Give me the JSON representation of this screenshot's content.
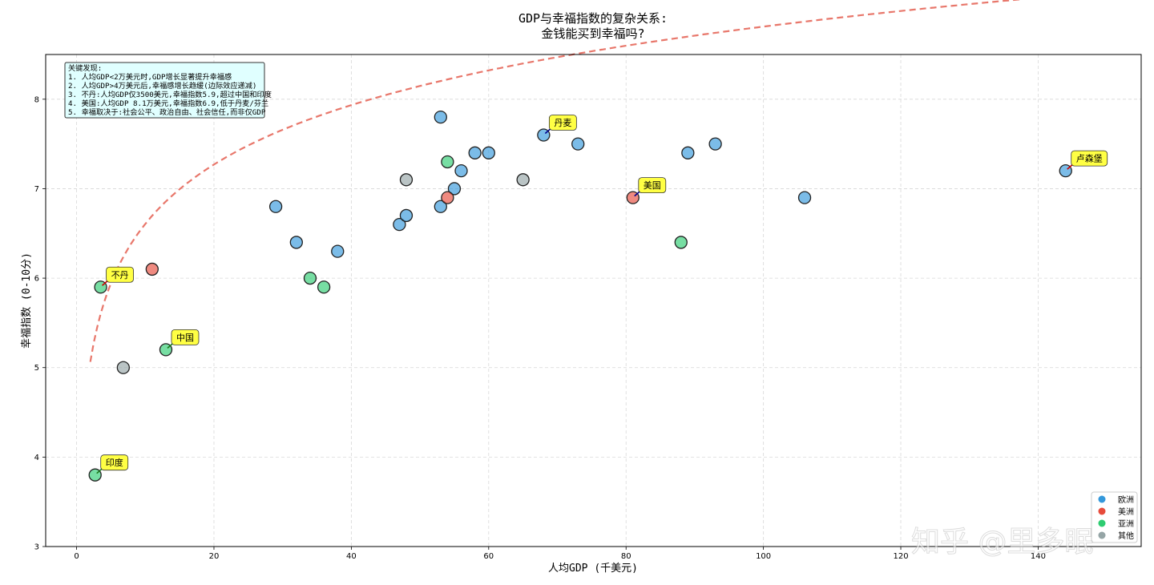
{
  "chart_data": {
    "type": "scatter",
    "title_line1": "GDP与幸福指数的复杂关系:",
    "title_line2": "金钱能买到幸福吗?",
    "xlabel": "人均GDP (千美元)",
    "ylabel": "幸福指数 (0-10分)",
    "xlim": [
      -4.5,
      155
    ],
    "ylim": [
      3,
      8.5
    ],
    "xticks": [
      0,
      20,
      40,
      60,
      80,
      100,
      120,
      140
    ],
    "yticks": [
      3,
      4,
      5,
      6,
      7,
      8
    ],
    "grid": true,
    "colors": {
      "欧洲": "#3498db",
      "美洲": "#e74c3c",
      "亚洲": "#2ecc71",
      "其他": "#95a5a6",
      "trend": "#e8776b",
      "annotation_bg": "#ffff44",
      "note_bg": "#e0ffff"
    },
    "points": [
      {
        "x": 29,
        "y": 6.8,
        "group": "欧洲"
      },
      {
        "x": 32,
        "y": 6.4,
        "group": "欧洲"
      },
      {
        "x": 38,
        "y": 6.3,
        "group": "欧洲"
      },
      {
        "x": 47,
        "y": 6.6,
        "group": "欧洲"
      },
      {
        "x": 48,
        "y": 6.7,
        "group": "欧洲"
      },
      {
        "x": 53,
        "y": 6.8,
        "group": "欧洲"
      },
      {
        "x": 55,
        "y": 7.0,
        "group": "欧洲"
      },
      {
        "x": 53,
        "y": 7.8,
        "group": "欧洲"
      },
      {
        "x": 56,
        "y": 7.2,
        "group": "欧洲"
      },
      {
        "x": 58,
        "y": 7.4,
        "group": "欧洲"
      },
      {
        "x": 60,
        "y": 7.4,
        "group": "欧洲"
      },
      {
        "x": 68,
        "y": 7.6,
        "group": "欧洲"
      },
      {
        "x": 73,
        "y": 7.5,
        "group": "欧洲"
      },
      {
        "x": 89,
        "y": 7.4,
        "group": "欧洲"
      },
      {
        "x": 93,
        "y": 7.5,
        "group": "欧洲"
      },
      {
        "x": 106,
        "y": 6.9,
        "group": "欧洲"
      },
      {
        "x": 144,
        "y": 7.2,
        "group": "欧洲"
      },
      {
        "x": 11,
        "y": 6.1,
        "group": "美洲"
      },
      {
        "x": 54,
        "y": 6.9,
        "group": "美洲"
      },
      {
        "x": 81,
        "y": 6.9,
        "group": "美洲"
      },
      {
        "x": 3.5,
        "y": 5.9,
        "group": "亚洲"
      },
      {
        "x": 13,
        "y": 5.2,
        "group": "亚洲"
      },
      {
        "x": 2.7,
        "y": 3.8,
        "group": "亚洲"
      },
      {
        "x": 34,
        "y": 6.0,
        "group": "亚洲"
      },
      {
        "x": 36,
        "y": 5.9,
        "group": "亚洲"
      },
      {
        "x": 54,
        "y": 7.3,
        "group": "亚洲"
      },
      {
        "x": 88,
        "y": 6.4,
        "group": "亚洲"
      },
      {
        "x": 6.8,
        "y": 5.0,
        "group": "其他"
      },
      {
        "x": 48,
        "y": 7.1,
        "group": "其他"
      },
      {
        "x": 65,
        "y": 7.1,
        "group": "其他"
      }
    ],
    "trend": {
      "type": "log",
      "a": 4.4,
      "b": 0.958,
      "x_start": 2,
      "x_end": 150
    },
    "annotations": [
      {
        "label": "不丹",
        "x": 3.5,
        "y": 5.9,
        "arrow": "#cc0000"
      },
      {
        "label": "中国",
        "x": 13,
        "y": 5.2,
        "arrow": "#1a7a1a"
      },
      {
        "label": "印度",
        "x": 2.7,
        "y": 3.8,
        "arrow": "#1a7a1a"
      },
      {
        "label": "丹麦",
        "x": 68,
        "y": 7.6,
        "arrow": "#00008b"
      },
      {
        "label": "美国",
        "x": 81,
        "y": 6.9,
        "arrow": "#00008b"
      },
      {
        "label": "卢森堡",
        "x": 144,
        "y": 7.2,
        "arrow": "#cc0000"
      }
    ],
    "note_lines": [
      "关键发现:",
      "1. 人均GDP<2万美元时,GDP增长显著提升幸福感",
      "2. 人均GDP>4万美元后,幸福感增长趋缓(边际效应递减)",
      "3. 不丹:人均GDP仅3500美元,幸福指数5.9,超过中国和印度",
      "4. 美国:人均GDP 8.1万美元,幸福指数6.9,低于丹麦/芬兰",
      "5. 幸福取决于:社会公平、政治自由、社会信任,而非仅GDP"
    ],
    "legend": [
      {
        "label": "欧洲",
        "color": "#3498db"
      },
      {
        "label": "美洲",
        "color": "#e74c3c"
      },
      {
        "label": "亚洲",
        "color": "#2ecc71"
      },
      {
        "label": "其他",
        "color": "#95a5a6"
      }
    ],
    "legend_position": "bottom-right"
  },
  "watermark": "知乎 @里多眠"
}
